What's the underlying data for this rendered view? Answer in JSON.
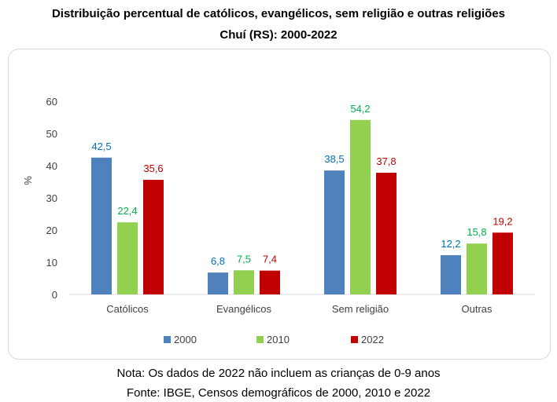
{
  "header": {
    "title": "Distribuição percentual de católicos, evangélicos, sem religião e outras religiões",
    "subtitle": "Chuí (RS): 2000-2022"
  },
  "footer": {
    "note": "Nota: Os dados de 2022 não incluem as crianças de 0-9 anos",
    "source": "Fonte: IBGE, Censos demográficos de 2000, 2010 e 2022"
  },
  "chart_data": {
    "type": "bar",
    "title": "Distribuição percentual de católicos, evangélicos, sem religião e outras religiões",
    "subtitle": "Chuí (RS): 2000-2022",
    "xlabel": "",
    "ylabel": "%",
    "ylim": [
      0,
      60
    ],
    "yticks": [
      0,
      10,
      20,
      30,
      40,
      50,
      60
    ],
    "categories": [
      "Católicos",
      "Evangélicos",
      "Sem religião",
      "Outras"
    ],
    "series": [
      {
        "name": "2000",
        "values": [
          42.5,
          6.8,
          38.5,
          12.2
        ],
        "labels": [
          "42,5",
          "6,8",
          "38,5",
          "12,2"
        ],
        "color": "#4f81bd",
        "label_color": "#0070c0"
      },
      {
        "name": "2010",
        "values": [
          22.4,
          7.5,
          54.2,
          15.8
        ],
        "labels": [
          "22,4",
          "7,5",
          "54,2",
          "15,8"
        ],
        "color": "#92d050",
        "label_color": "#00b050"
      },
      {
        "name": "2022",
        "values": [
          35.6,
          7.4,
          37.8,
          19.2
        ],
        "labels": [
          "35,6",
          "7,4",
          "37,8",
          "19,2"
        ],
        "color": "#c00000",
        "label_color": "#c00000"
      }
    ],
    "legend": "bottom",
    "grid": false
  }
}
